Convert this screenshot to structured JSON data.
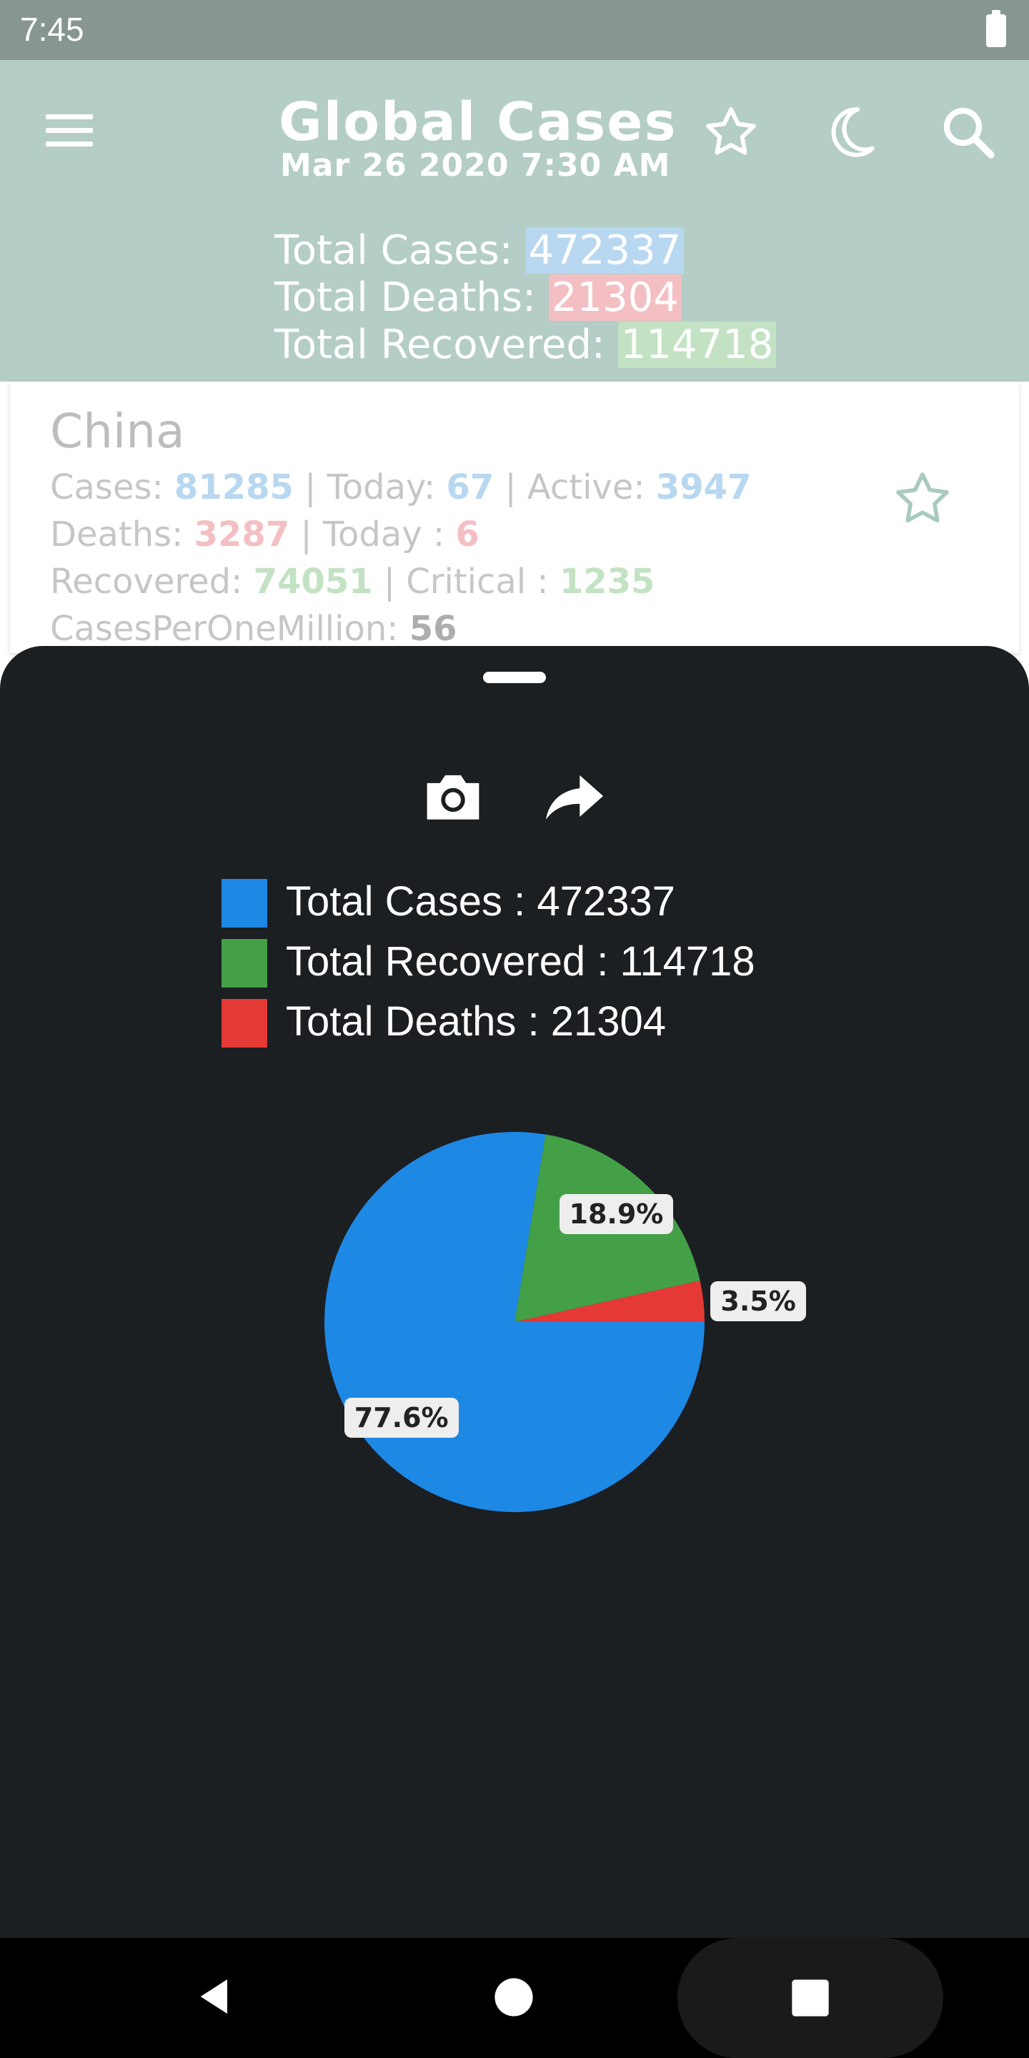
{
  "status_bar": {
    "time": "7:45"
  },
  "header": {
    "title": "Global Cases",
    "date": "Mar 26 2020 7:30 AM",
    "icons": [
      "menu-icon",
      "star-icon",
      "moon-icon",
      "search-icon"
    ]
  },
  "totals": {
    "cases_label": "Total Cases:",
    "cases_value": "472337",
    "deaths_label": "Total Deaths:",
    "deaths_value": "21304",
    "recovered_label": "Total Recovered:",
    "recovered_value": "114718"
  },
  "country": {
    "name": "China",
    "cases_label": "Cases:",
    "cases": "81285",
    "today_label": "| Today:",
    "today_cases": "67",
    "active_label": "| Active:",
    "active": "3947",
    "deaths_label": "Deaths:",
    "deaths": "3287",
    "today_deaths_label": "| Today :",
    "today_deaths": "6",
    "recovered_label": "Recovered:",
    "recovered": "74051",
    "critical_label": "| Critical :",
    "critical": "1235",
    "cpm_label": "CasesPerOneMillion:",
    "cpm": "56"
  },
  "sheet": {
    "icons": [
      "camera-icon",
      "share-icon"
    ],
    "legend": [
      {
        "label": "Total Cases : 472337",
        "color": "#1e88e5"
      },
      {
        "label": "Total Recovered : 114718",
        "color": "#43a047"
      },
      {
        "label": "Total Deaths : 21304",
        "color": "#e53935"
      }
    ]
  },
  "chart_data": {
    "type": "pie",
    "categories": [
      "Total Cases",
      "Total Recovered",
      "Total Deaths"
    ],
    "values": [
      77.6,
      18.9,
      3.5
    ],
    "labels": [
      "77.6%",
      "18.9%",
      "3.5%"
    ],
    "colors": [
      "#1e88e5",
      "#43a047",
      "#e53935"
    ],
    "legend_position": "top"
  },
  "colors": {
    "header_bg": "#b4cdc6",
    "status_bg": "#879691",
    "sheet_bg": "#1b1f22",
    "highlight_blue": "#b8d7f0",
    "highlight_red": "#f3bfc3",
    "highlight_green": "#c3e2c3"
  }
}
